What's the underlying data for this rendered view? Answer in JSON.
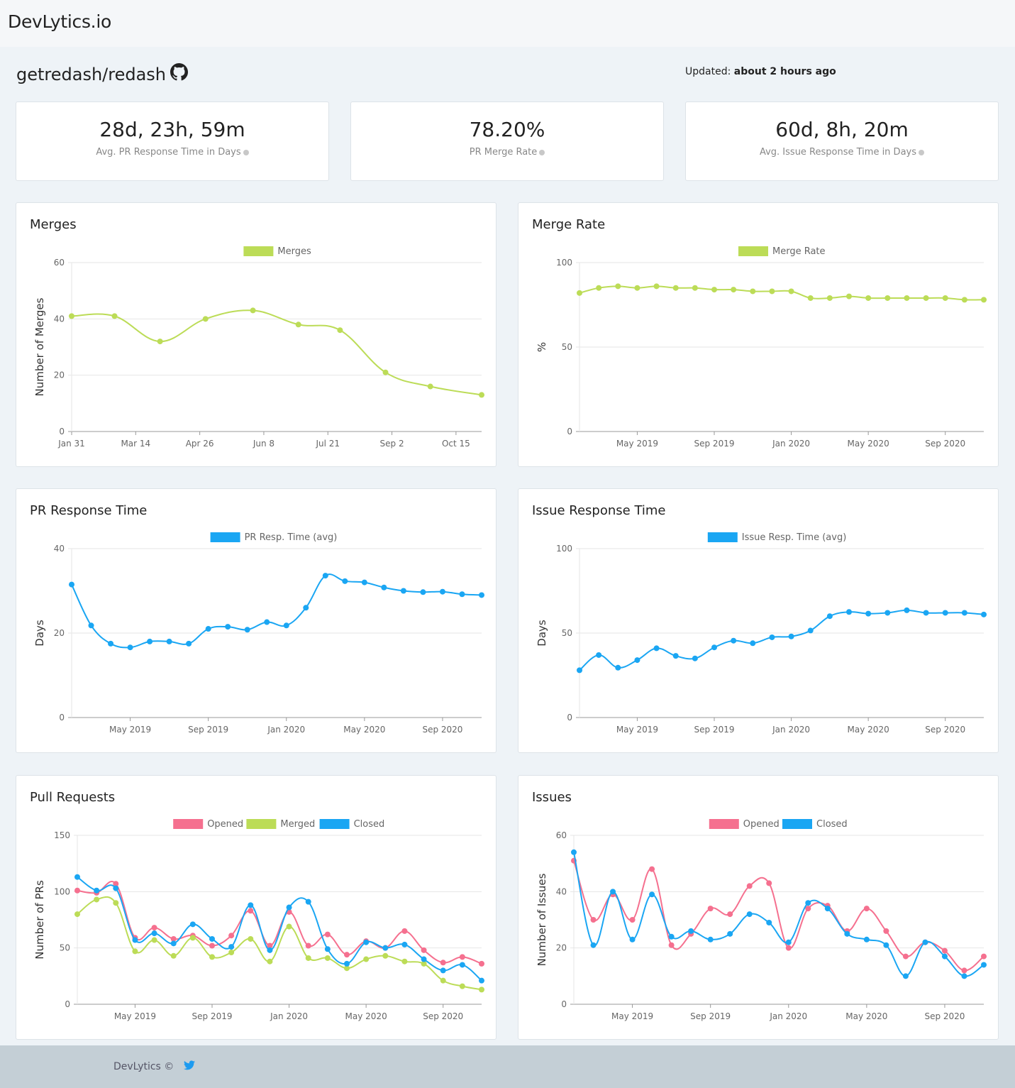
{
  "app": {
    "brand": "DevLytics.io"
  },
  "repo": {
    "name": "getredash/redash",
    "updated_label": "Updated:",
    "updated_value": "about 2 hours ago"
  },
  "stats": [
    {
      "value": "28d, 23h, 59m",
      "label": "Avg. PR Response Time in Days"
    },
    {
      "value": "78.20%",
      "label": "PR Merge Rate"
    },
    {
      "value": "60d, 8h, 20m",
      "label": "Avg. Issue Response Time in Days"
    }
  ],
  "colors": {
    "green": "#bcdc57",
    "blue": "#1aa6f3",
    "pink": "#f5708f",
    "grid": "#e6e6e6",
    "axis": "#999"
  },
  "footer": {
    "text": "DevLytics ©"
  },
  "chart_data": [
    {
      "title": "Merges",
      "type": "line",
      "ylabel": "Number of Merges",
      "ylim": [
        0,
        60
      ],
      "yticks": [
        0,
        20,
        40,
        60
      ],
      "xtick_labels": [
        "Jan 31",
        "Mar 14",
        "Apr 26",
        "Jun 8",
        "Jul 21",
        "Sep 2",
        "Oct 15"
      ],
      "xtick_pos": [
        0,
        1,
        2,
        3,
        4,
        5,
        6
      ],
      "x": [
        0,
        0.67,
        1.38,
        2.09,
        2.83,
        3.54,
        4.19,
        4.9,
        5.6,
        6.4
      ],
      "xmin": 0,
      "xmax": 6.4,
      "series": [
        {
          "name": "Merges",
          "color": "green",
          "values": [
            41,
            41,
            32,
            40,
            43,
            38,
            36,
            21,
            16,
            13
          ]
        }
      ],
      "grid": true,
      "legend": "top"
    },
    {
      "title": "Merge Rate",
      "type": "line",
      "ylabel": "%",
      "ylim": [
        0,
        100
      ],
      "yticks": [
        0,
        50,
        100
      ],
      "xtick_labels": [
        "May 2019",
        "Sep 2019",
        "Jan 2020",
        "May 2020",
        "Sep 2020"
      ],
      "xtick_pos": [
        3,
        7,
        11,
        15,
        19
      ],
      "x": [
        0,
        1,
        2,
        3,
        4,
        5,
        6,
        7,
        8,
        9,
        10,
        11,
        12,
        13,
        14,
        15,
        16,
        17,
        18,
        19,
        20,
        21
      ],
      "xmin": 0,
      "xmax": 21,
      "series": [
        {
          "name": "Merge Rate",
          "color": "green",
          "values": [
            82,
            85,
            86,
            85,
            86,
            85,
            85,
            84,
            84,
            83,
            83,
            83,
            79,
            79,
            80,
            79,
            79,
            79,
            79,
            79,
            78,
            78
          ]
        }
      ],
      "grid": true,
      "legend": "top"
    },
    {
      "title": "PR Response Time",
      "type": "line",
      "ylabel": "Days",
      "ylim": [
        0,
        40
      ],
      "yticks": [
        0,
        20,
        40
      ],
      "xtick_labels": [
        "May 2019",
        "Sep 2019",
        "Jan 2020",
        "May 2020",
        "Sep 2020"
      ],
      "xtick_pos": [
        3,
        7,
        11,
        15,
        19
      ],
      "x": [
        0,
        1,
        2,
        3,
        4,
        5,
        6,
        7,
        8,
        9,
        10,
        11,
        12,
        13,
        14,
        15,
        16,
        17,
        18,
        19,
        20,
        21
      ],
      "xmin": 0,
      "xmax": 21,
      "series": [
        {
          "name": "PR Resp. Time (avg)",
          "color": "blue",
          "values": [
            31.5,
            21.8,
            17.5,
            16.6,
            18,
            18,
            17.5,
            21,
            21.5,
            20.8,
            22.6,
            21.8,
            26,
            33.6,
            32.3,
            32,
            30.8,
            30,
            29.7,
            29.8,
            29.2,
            29
          ]
        }
      ],
      "grid": true,
      "legend": "top"
    },
    {
      "title": "Issue Response Time",
      "type": "line",
      "ylabel": "Days",
      "ylim": [
        0,
        100
      ],
      "yticks": [
        0,
        50,
        100
      ],
      "xtick_labels": [
        "May 2019",
        "Sep 2019",
        "Jan 2020",
        "May 2020",
        "Sep 2020"
      ],
      "xtick_pos": [
        3,
        7,
        11,
        15,
        19
      ],
      "x": [
        0,
        1,
        2,
        3,
        4,
        5,
        6,
        7,
        8,
        9,
        10,
        11,
        12,
        13,
        14,
        15,
        16,
        17,
        18,
        19,
        20,
        21
      ],
      "xmin": 0,
      "xmax": 21,
      "series": [
        {
          "name": "Issue Resp. Time (avg)",
          "color": "blue",
          "values": [
            28,
            37,
            29.5,
            34,
            41,
            36.5,
            35,
            41.5,
            45.5,
            44,
            47.5,
            48,
            51.5,
            60,
            62.5,
            61.5,
            62,
            63.5,
            62,
            62,
            62,
            61
          ]
        }
      ],
      "grid": true,
      "legend": "top"
    },
    {
      "title": "Pull Requests",
      "type": "line",
      "ylabel": "Number of PRs",
      "ylim": [
        0,
        150
      ],
      "yticks": [
        0,
        50,
        100,
        150
      ],
      "xtick_labels": [
        "May 2019",
        "Sep 2019",
        "Jan 2020",
        "May 2020",
        "Sep 2020"
      ],
      "xtick_pos": [
        3,
        7,
        11,
        15,
        19
      ],
      "x": [
        0,
        1,
        2,
        3,
        4,
        5,
        6,
        7,
        8,
        9,
        10,
        11,
        12,
        13,
        14,
        15,
        16,
        17,
        18,
        19,
        20,
        21
      ],
      "xmin": 0,
      "xmax": 21,
      "series": [
        {
          "name": "Opened",
          "color": "pink",
          "values": [
            101,
            99,
            107,
            59,
            68,
            58,
            61,
            52,
            61,
            83,
            52,
            82,
            52,
            62,
            44,
            56,
            50,
            65,
            48,
            37,
            42,
            36
          ]
        },
        {
          "name": "Merged",
          "color": "green",
          "values": [
            80,
            93,
            90,
            47,
            57,
            43,
            59,
            42,
            46,
            58,
            38,
            69,
            41,
            41,
            32,
            40,
            43,
            38,
            36,
            21,
            16,
            13
          ]
        },
        {
          "name": "Closed",
          "color": "blue",
          "values": [
            113,
            101,
            103,
            57,
            63,
            54,
            71,
            58,
            51,
            88,
            48,
            86,
            91,
            49,
            36,
            55,
            50,
            53,
            40,
            30,
            35,
            21
          ]
        }
      ],
      "grid": true,
      "legend": "top"
    },
    {
      "title": "Issues",
      "type": "line",
      "ylabel": "Number of Issues",
      "ylim": [
        0,
        60
      ],
      "yticks": [
        0,
        20,
        40,
        60
      ],
      "xtick_labels": [
        "May 2019",
        "Sep 2019",
        "Jan 2020",
        "May 2020",
        "Sep 2020"
      ],
      "xtick_pos": [
        3,
        7,
        11,
        15,
        19
      ],
      "x": [
        0,
        1,
        2,
        3,
        4,
        5,
        6,
        7,
        8,
        9,
        10,
        11,
        12,
        13,
        14,
        15,
        16,
        17,
        18,
        19,
        20,
        21
      ],
      "xmin": 0,
      "xmax": 21,
      "series": [
        {
          "name": "Opened",
          "color": "pink",
          "values": [
            51,
            30,
            39,
            30,
            48,
            21,
            25,
            34,
            32,
            42,
            43,
            20,
            34,
            35,
            26,
            34,
            26,
            17,
            22,
            19,
            12,
            17
          ]
        },
        {
          "name": "Closed",
          "color": "blue",
          "values": [
            54,
            21,
            40,
            23,
            39,
            24,
            26,
            23,
            25,
            32,
            29,
            22,
            36,
            34,
            25,
            23,
            21,
            10,
            22,
            17,
            10,
            14
          ]
        }
      ],
      "grid": true,
      "legend": "top"
    }
  ]
}
